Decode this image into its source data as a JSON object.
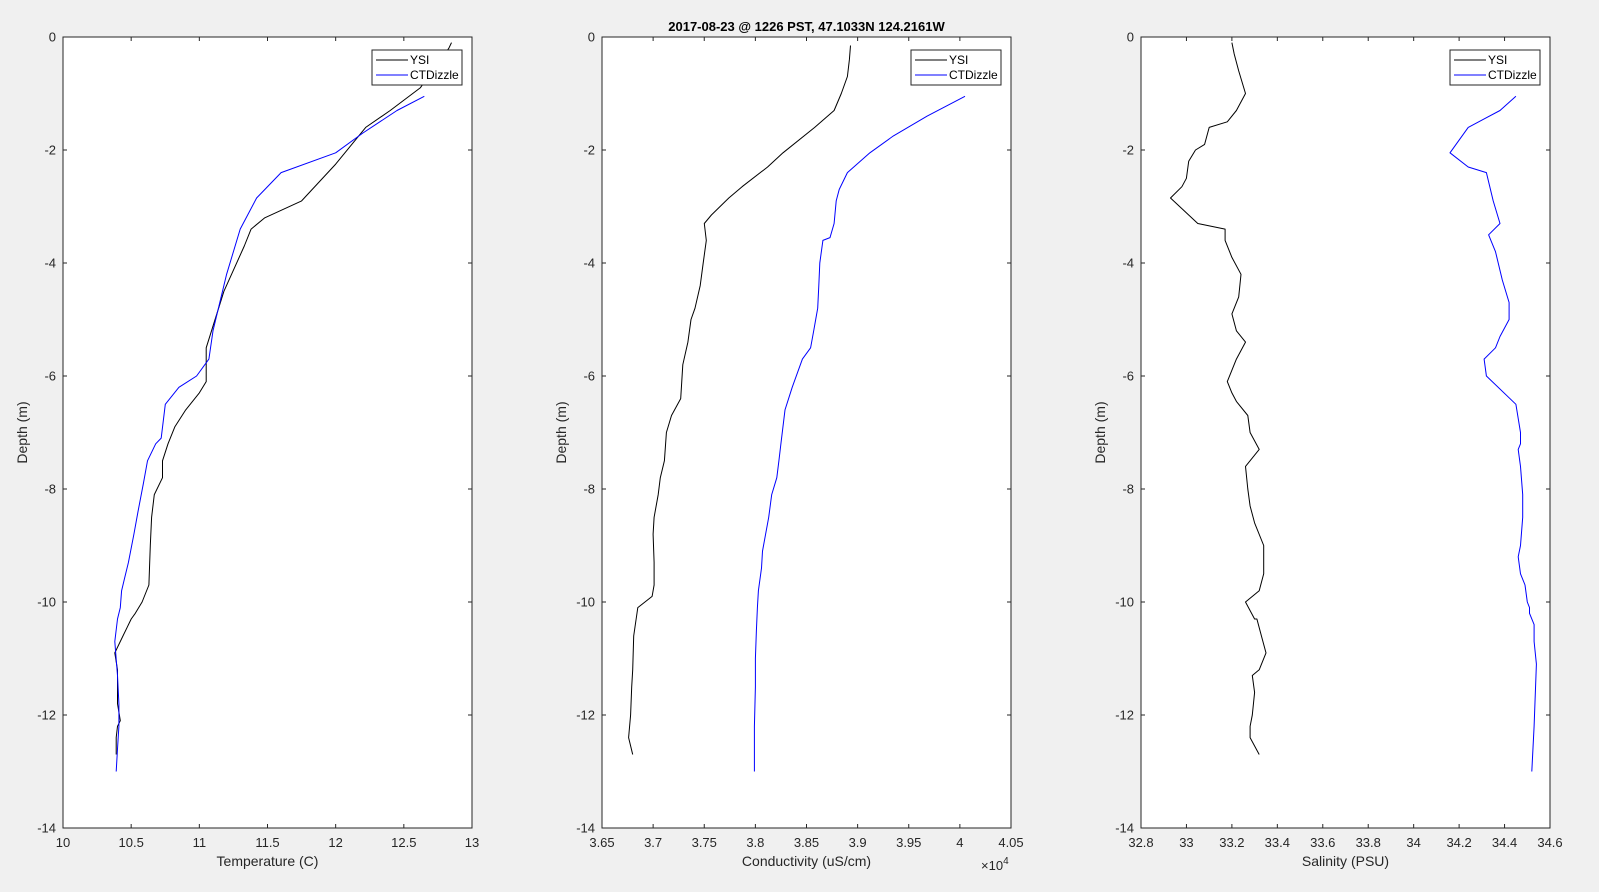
{
  "figure": {
    "title": "2017-08-23 @ 1226 PST, 47.1033N 124.2161W"
  },
  "chart_data": [
    {
      "type": "line",
      "xlabel": "Temperature (C)",
      "ylabel": "Depth (m)",
      "xlim": [
        10,
        13
      ],
      "ylim": [
        -14,
        0
      ],
      "xticks": [
        "10",
        "10.5",
        "11",
        "11.5",
        "12",
        "12.5",
        "13"
      ],
      "yticks": [
        "0",
        "-2",
        "-4",
        "-6",
        "-8",
        "-10",
        "-12",
        "-14"
      ],
      "grid": false,
      "legend_position": "top-right",
      "series": [
        {
          "name": "YSI",
          "color": "#000000",
          "x": [
            12.85,
            12.83,
            12.62,
            12.4,
            12.22,
            12.0,
            11.75,
            11.48,
            11.38,
            11.33,
            11.18,
            11.05,
            11.05,
            11.0,
            10.9,
            10.82,
            10.77,
            10.73,
            10.73,
            10.67,
            10.65,
            10.64,
            10.63,
            10.58,
            10.53,
            10.5,
            10.44,
            10.38,
            10.4,
            10.4,
            10.42,
            10.4,
            10.39,
            10.39
          ],
          "y": [
            -0.1,
            -0.2,
            -0.9,
            -1.3,
            -1.6,
            -2.25,
            -2.9,
            -3.2,
            -3.4,
            -3.7,
            -4.5,
            -5.5,
            -6.1,
            -6.3,
            -6.6,
            -6.9,
            -7.2,
            -7.5,
            -7.8,
            -8.1,
            -8.5,
            -9.0,
            -9.7,
            -10.0,
            -10.2,
            -10.3,
            -10.6,
            -10.9,
            -11.2,
            -11.8,
            -12.1,
            -12.2,
            -12.4,
            -12.7
          ]
        },
        {
          "name": "CTDizzle",
          "color": "#0000ff",
          "x": [
            12.65,
            12.45,
            12.2,
            12.0,
            11.6,
            11.42,
            11.3,
            11.2,
            11.1,
            11.07,
            10.98,
            10.85,
            10.75,
            10.72,
            10.68,
            10.62,
            10.59,
            10.55,
            10.52,
            10.48,
            10.45,
            10.43,
            10.42,
            10.4,
            10.38,
            10.4,
            10.41,
            10.41,
            10.4,
            10.39
          ],
          "y": [
            -1.05,
            -1.3,
            -1.7,
            -2.05,
            -2.4,
            -2.85,
            -3.4,
            -4.2,
            -5.2,
            -5.7,
            -6.0,
            -6.2,
            -6.5,
            -7.1,
            -7.2,
            -7.5,
            -7.9,
            -8.4,
            -8.8,
            -9.3,
            -9.6,
            -9.8,
            -10.1,
            -10.3,
            -10.7,
            -11.3,
            -11.8,
            -12.2,
            -12.6,
            -13.0
          ]
        }
      ]
    },
    {
      "type": "line",
      "xlabel": "Conductivity (uS/cm)",
      "ylabel": "Depth (m)",
      "xlim": [
        3.65,
        4.05
      ],
      "ylim": [
        -14,
        0
      ],
      "xticks": [
        "3.65",
        "3.7",
        "3.75",
        "3.8",
        "3.85",
        "3.9",
        "3.95",
        "4",
        "4.05"
      ],
      "yticks": [
        "0",
        "-2",
        "-4",
        "-6",
        "-8",
        "-10",
        "-12",
        "-14"
      ],
      "x_multiplier": "×10",
      "x_multiplier_exponent": "4",
      "grid": false,
      "legend_position": "top-right",
      "series": [
        {
          "name": "YSI",
          "color": "#000000",
          "x": [
            3.893,
            3.892,
            3.89,
            3.884,
            3.877,
            3.858,
            3.827,
            3.812,
            3.787,
            3.774,
            3.757,
            3.75,
            3.752,
            3.749,
            3.746,
            3.741,
            3.737,
            3.734,
            3.729,
            3.727,
            3.718,
            3.713,
            3.711,
            3.707,
            3.705,
            3.701,
            3.7,
            3.701,
            3.701,
            3.699,
            3.685,
            3.681,
            3.68,
            3.679,
            3.678,
            3.676,
            3.68
          ],
          "y": [
            -0.15,
            -0.4,
            -0.7,
            -1.0,
            -1.3,
            -1.6,
            -2.05,
            -2.3,
            -2.65,
            -2.85,
            -3.15,
            -3.3,
            -3.6,
            -4.0,
            -4.4,
            -4.8,
            -5.0,
            -5.4,
            -5.8,
            -6.4,
            -6.7,
            -7.0,
            -7.5,
            -7.8,
            -8.1,
            -8.5,
            -8.8,
            -9.3,
            -9.7,
            -9.9,
            -10.1,
            -10.6,
            -11.2,
            -11.5,
            -12.0,
            -12.4,
            -12.7
          ]
        },
        {
          "name": "CTDizzle",
          "color": "#0000ff",
          "x": [
            4.005,
            3.968,
            3.935,
            3.912,
            3.89,
            3.882,
            3.879,
            3.877,
            3.873,
            3.866,
            3.863,
            3.862,
            3.861,
            3.859,
            3.857,
            3.854,
            3.846,
            3.836,
            3.829,
            3.825,
            3.823,
            3.821,
            3.816,
            3.813,
            3.81,
            3.807,
            3.806,
            3.803,
            3.802,
            3.801,
            3.8,
            3.8,
            3.799,
            3.799
          ],
          "y": [
            -1.05,
            -1.4,
            -1.75,
            -2.05,
            -2.4,
            -2.7,
            -2.9,
            -3.3,
            -3.55,
            -3.6,
            -4.0,
            -4.4,
            -4.8,
            -5.0,
            -5.2,
            -5.5,
            -5.7,
            -6.2,
            -6.6,
            -7.2,
            -7.5,
            -7.8,
            -8.1,
            -8.5,
            -8.8,
            -9.1,
            -9.4,
            -9.8,
            -10.1,
            -10.5,
            -11.0,
            -11.5,
            -12.2,
            -13.0
          ]
        }
      ]
    },
    {
      "type": "line",
      "xlabel": "Salinity (PSU)",
      "ylabel": "Depth (m)",
      "xlim": [
        32.8,
        34.6
      ],
      "ylim": [
        -14,
        0
      ],
      "xticks": [
        "32.8",
        "33",
        "33.2",
        "33.4",
        "33.6",
        "33.8",
        "34",
        "34.2",
        "34.4",
        "34.6"
      ],
      "yticks": [
        "0",
        "-2",
        "-4",
        "-6",
        "-8",
        "-10",
        "-12",
        "-14"
      ],
      "grid": false,
      "legend_position": "top-right",
      "series": [
        {
          "name": "YSI",
          "color": "#000000",
          "x": [
            33.2,
            33.21,
            33.23,
            33.26,
            33.22,
            33.18,
            33.1,
            33.08,
            33.04,
            33.01,
            33.0,
            32.98,
            32.93,
            33.05,
            33.17,
            33.17,
            33.2,
            33.24,
            33.23,
            33.2,
            33.22,
            33.26,
            33.22,
            33.18,
            33.2,
            33.22,
            33.27,
            33.28,
            33.32,
            33.26,
            33.27,
            33.28,
            33.3,
            33.34,
            33.34,
            33.32,
            33.26,
            33.3,
            33.31,
            33.33,
            33.35,
            33.32,
            33.29,
            33.3,
            33.29,
            33.28,
            33.28,
            33.32
          ],
          "y": [
            -0.1,
            -0.3,
            -0.6,
            -1.0,
            -1.3,
            -1.5,
            -1.6,
            -1.9,
            -2.0,
            -2.2,
            -2.5,
            -2.65,
            -2.85,
            -3.3,
            -3.4,
            -3.6,
            -3.9,
            -4.2,
            -4.6,
            -4.9,
            -5.2,
            -5.4,
            -5.7,
            -6.1,
            -6.3,
            -6.45,
            -6.7,
            -7.0,
            -7.3,
            -7.6,
            -8.0,
            -8.3,
            -8.6,
            -9.0,
            -9.5,
            -9.8,
            -10.0,
            -10.3,
            -10.3,
            -10.6,
            -10.9,
            -11.2,
            -11.3,
            -11.6,
            -12.0,
            -12.2,
            -12.4,
            -12.7
          ]
        },
        {
          "name": "CTDizzle",
          "color": "#0000ff",
          "x": [
            34.45,
            34.38,
            34.31,
            34.24,
            34.16,
            34.24,
            34.32,
            34.35,
            34.38,
            34.33,
            34.36,
            34.39,
            34.42,
            34.42,
            34.38,
            34.36,
            34.31,
            34.32,
            34.45,
            34.47,
            34.47,
            34.46,
            34.47,
            34.48,
            34.48,
            34.47,
            34.46,
            34.47,
            34.49,
            34.5,
            34.51,
            34.51,
            34.53,
            34.53,
            34.54,
            34.53,
            34.52
          ],
          "y": [
            -1.05,
            -1.3,
            -1.45,
            -1.6,
            -2.05,
            -2.3,
            -2.4,
            -2.9,
            -3.3,
            -3.5,
            -3.8,
            -4.3,
            -4.7,
            -5.0,
            -5.3,
            -5.5,
            -5.7,
            -6.0,
            -6.5,
            -7.0,
            -7.2,
            -7.3,
            -7.6,
            -8.1,
            -8.5,
            -9.0,
            -9.2,
            -9.5,
            -9.7,
            -10.0,
            -10.1,
            -10.2,
            -10.4,
            -10.7,
            -11.1,
            -12.2,
            -13.0
          ]
        }
      ]
    }
  ]
}
